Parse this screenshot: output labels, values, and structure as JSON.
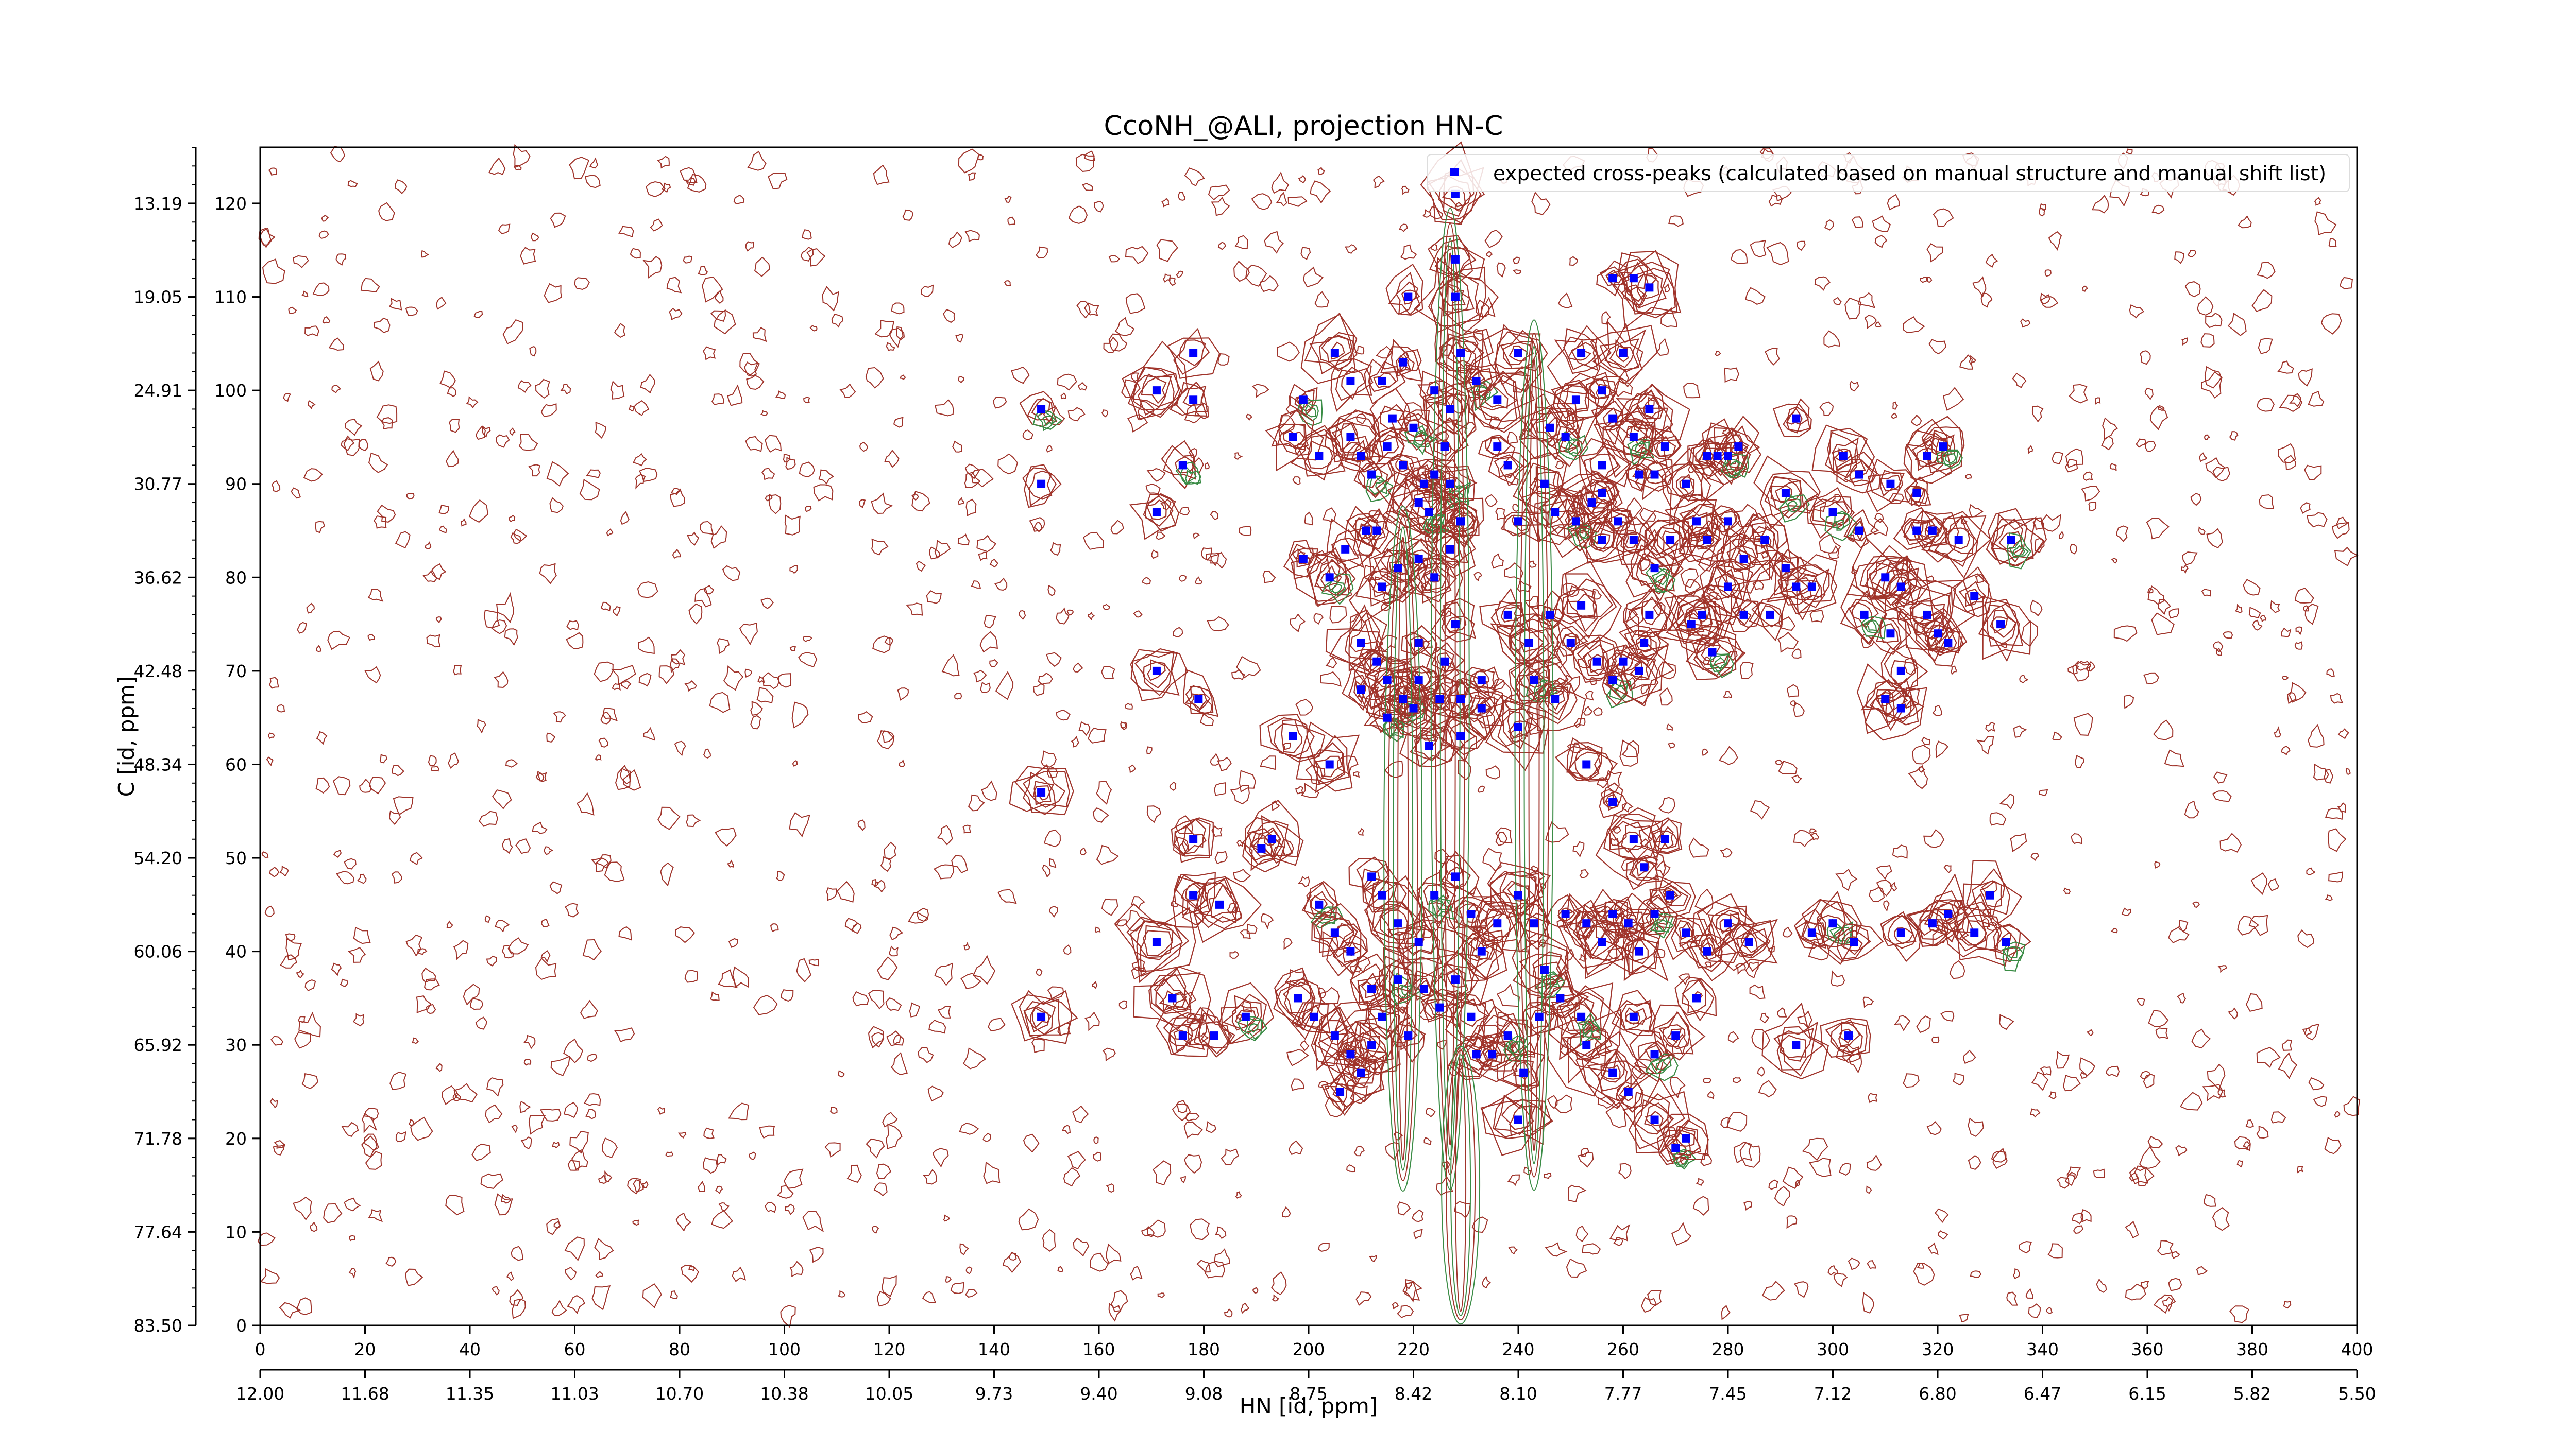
{
  "chart_data": {
    "type": "scatter",
    "title": "CcoNH_@ALI, projection HN-C",
    "xlabel": "HN [id, ppm]",
    "ylabel": "C [id, ppm]",
    "xlim": [
      0,
      400
    ],
    "ylim": [
      0,
      126
    ],
    "x_ticks": [
      0,
      20,
      40,
      60,
      80,
      100,
      120,
      140,
      160,
      180,
      200,
      220,
      240,
      260,
      280,
      300,
      320,
      340,
      360,
      380,
      400
    ],
    "x_ppm_ticks": [
      "12.00",
      "11.68",
      "11.35",
      "11.03",
      "10.70",
      "10.38",
      "10.05",
      "9.73",
      "9.40",
      "9.08",
      "8.75",
      "8.42",
      "8.10",
      "7.77",
      "7.45",
      "7.12",
      "6.80",
      "6.47",
      "6.15",
      "5.82",
      "5.50"
    ],
    "y_ticks": [
      0,
      10,
      20,
      30,
      40,
      50,
      60,
      70,
      80,
      90,
      100,
      110,
      120
    ],
    "y_ppm_ticks": [
      "83.50",
      "77.64",
      "71.78",
      "65.92",
      "60.06",
      "54.20",
      "48.34",
      "42.48",
      "36.62",
      "30.77",
      "24.91",
      "19.05",
      "13.19"
    ],
    "legend": {
      "placement": "top-right",
      "label": "expected cross-peaks (calculated based on manual structure and manual shift list)"
    },
    "colors": {
      "positive_contour": "#a0342b",
      "negative_contour": "#3a8c45",
      "peak_marker": "#0000ff"
    },
    "series": [
      {
        "name": "expected cross-peaks (calculated based on manual structure and manual shift list)",
        "points": [
          [
            149,
            98
          ],
          [
            149,
            90
          ],
          [
            171,
            100
          ],
          [
            171,
            87
          ],
          [
            171,
            70
          ],
          [
            178,
            104
          ],
          [
            178,
            99
          ],
          [
            176,
            92
          ],
          [
            179,
            67
          ],
          [
            178,
            52
          ],
          [
            178,
            46
          ],
          [
            183,
            45
          ],
          [
            191,
            51
          ],
          [
            193,
            52
          ],
          [
            188,
            33
          ],
          [
            171,
            41
          ],
          [
            174,
            35
          ],
          [
            176,
            31
          ],
          [
            182,
            31
          ],
          [
            149,
            33
          ],
          [
            149,
            57
          ],
          [
            199,
            99
          ],
          [
            197,
            95
          ],
          [
            202,
            93
          ],
          [
            205,
            104
          ],
          [
            208,
            101
          ],
          [
            208,
            95
          ],
          [
            210,
            93
          ],
          [
            212,
            91
          ],
          [
            214,
            101
          ],
          [
            215,
            94
          ],
          [
            216,
            97
          ],
          [
            219,
            110
          ],
          [
            218,
            103
          ],
          [
            218,
            92
          ],
          [
            220,
            96
          ],
          [
            221,
            88
          ],
          [
            222,
            90
          ],
          [
            224,
            100
          ],
          [
            224,
            91
          ],
          [
            226,
            94
          ],
          [
            227,
            98
          ],
          [
            227,
            90
          ],
          [
            229,
            86
          ],
          [
            228,
            121
          ],
          [
            228,
            110
          ],
          [
            228,
            114
          ],
          [
            229,
            104
          ],
          [
            199,
            82
          ],
          [
            204,
            80
          ],
          [
            207,
            83
          ],
          [
            211,
            85
          ],
          [
            213,
            85
          ],
          [
            214,
            79
          ],
          [
            217,
            81
          ],
          [
            221,
            82
          ],
          [
            223,
            87
          ],
          [
            224,
            80
          ],
          [
            227,
            83
          ],
          [
            229,
            86
          ],
          [
            210,
            73
          ],
          [
            213,
            71
          ],
          [
            215,
            69
          ],
          [
            218,
            67
          ],
          [
            221,
            73
          ],
          [
            221,
            69
          ],
          [
            226,
            71
          ],
          [
            228,
            75
          ],
          [
            229,
            67
          ],
          [
            233,
            66
          ],
          [
            232,
            101
          ],
          [
            236,
            99
          ],
          [
            236,
            94
          ],
          [
            238,
            92
          ],
          [
            240,
            104
          ],
          [
            245,
            90
          ],
          [
            246,
            96
          ],
          [
            249,
            95
          ],
          [
            251,
            99
          ],
          [
            252,
            104
          ],
          [
            256,
            100
          ],
          [
            256,
            92
          ],
          [
            258,
            97
          ],
          [
            260,
            104
          ],
          [
            262,
            95
          ],
          [
            265,
            98
          ],
          [
            266,
            91
          ],
          [
            268,
            94
          ],
          [
            272,
            90
          ],
          [
            276,
            93
          ],
          [
            278,
            93
          ],
          [
            280,
            93
          ],
          [
            282,
            94
          ],
          [
            258,
            112
          ],
          [
            262,
            112
          ],
          [
            265,
            111
          ],
          [
            240,
            86
          ],
          [
            247,
            87
          ],
          [
            251,
            86
          ],
          [
            254,
            88
          ],
          [
            256,
            89
          ],
          [
            256,
            84
          ],
          [
            259,
            86
          ],
          [
            262,
            84
          ],
          [
            263,
            91
          ],
          [
            266,
            81
          ],
          [
            269,
            84
          ],
          [
            274,
            86
          ],
          [
            276,
            84
          ],
          [
            280,
            86
          ],
          [
            283,
            82
          ],
          [
            287,
            84
          ],
          [
            291,
            89
          ],
          [
            293,
            97
          ],
          [
            302,
            93
          ],
          [
            305,
            91
          ],
          [
            311,
            90
          ],
          [
            316,
            89
          ],
          [
            318,
            93
          ],
          [
            321,
            94
          ],
          [
            238,
            76
          ],
          [
            242,
            73
          ],
          [
            246,
            76
          ],
          [
            250,
            73
          ],
          [
            252,
            77
          ],
          [
            255,
            71
          ],
          [
            258,
            69
          ],
          [
            260,
            71
          ],
          [
            263,
            70
          ],
          [
            264,
            73
          ],
          [
            265,
            76
          ],
          [
            273,
            75
          ],
          [
            275,
            76
          ],
          [
            277,
            72
          ],
          [
            280,
            79
          ],
          [
            283,
            76
          ],
          [
            288,
            76
          ],
          [
            291,
            81
          ],
          [
            293,
            79
          ],
          [
            296,
            79
          ],
          [
            300,
            87
          ],
          [
            305,
            85
          ],
          [
            310,
            80
          ],
          [
            313,
            79
          ],
          [
            316,
            85
          ],
          [
            319,
            85
          ],
          [
            324,
            84
          ],
          [
            334,
            84
          ],
          [
            332,
            75
          ],
          [
            327,
            78
          ],
          [
            311,
            74
          ],
          [
            322,
            73
          ],
          [
            320,
            74
          ],
          [
            313,
            70
          ],
          [
            306,
            76
          ],
          [
            310,
            67
          ],
          [
            318,
            76
          ],
          [
            313,
            66
          ],
          [
            197,
            63
          ],
          [
            204,
            60
          ],
          [
            210,
            68
          ],
          [
            215,
            65
          ],
          [
            220,
            66
          ],
          [
            223,
            62
          ],
          [
            225,
            67
          ],
          [
            229,
            63
          ],
          [
            233,
            69
          ],
          [
            240,
            64
          ],
          [
            243,
            69
          ],
          [
            247,
            67
          ],
          [
            253,
            60
          ],
          [
            258,
            56
          ],
          [
            262,
            52
          ],
          [
            264,
            49
          ],
          [
            268,
            52
          ],
          [
            202,
            45
          ],
          [
            205,
            42
          ],
          [
            208,
            40
          ],
          [
            212,
            48
          ],
          [
            214,
            46
          ],
          [
            217,
            43
          ],
          [
            221,
            41
          ],
          [
            224,
            46
          ],
          [
            228,
            48
          ],
          [
            231,
            44
          ],
          [
            233,
            40
          ],
          [
            236,
            43
          ],
          [
            240,
            46
          ],
          [
            243,
            43
          ],
          [
            245,
            38
          ],
          [
            249,
            44
          ],
          [
            253,
            43
          ],
          [
            256,
            41
          ],
          [
            258,
            44
          ],
          [
            261,
            43
          ],
          [
            263,
            40
          ],
          [
            266,
            44
          ],
          [
            269,
            46
          ],
          [
            272,
            42
          ],
          [
            276,
            40
          ],
          [
            280,
            43
          ],
          [
            284,
            41
          ],
          [
            296,
            42
          ],
          [
            300,
            43
          ],
          [
            304,
            41
          ],
          [
            313,
            42
          ],
          [
            319,
            43
          ],
          [
            322,
            44
          ],
          [
            327,
            42
          ],
          [
            330,
            46
          ],
          [
            333,
            41
          ],
          [
            198,
            35
          ],
          [
            201,
            33
          ],
          [
            205,
            31
          ],
          [
            208,
            29
          ],
          [
            212,
            36
          ],
          [
            214,
            33
          ],
          [
            217,
            37
          ],
          [
            219,
            31
          ],
          [
            222,
            36
          ],
          [
            225,
            34
          ],
          [
            228,
            37
          ],
          [
            231,
            33
          ],
          [
            235,
            29
          ],
          [
            238,
            31
          ],
          [
            241,
            27
          ],
          [
            244,
            33
          ],
          [
            248,
            35
          ],
          [
            253,
            30
          ],
          [
            258,
            27
          ],
          [
            262,
            33
          ],
          [
            266,
            29
          ],
          [
            270,
            31
          ],
          [
            274,
            35
          ],
          [
            293,
            30
          ],
          [
            303,
            31
          ],
          [
            261,
            25
          ],
          [
            266,
            22
          ],
          [
            270,
            19
          ],
          [
            272,
            20
          ],
          [
            240,
            22
          ],
          [
            232,
            29
          ],
          [
            210,
            27
          ],
          [
            206,
            25
          ],
          [
            212,
            30
          ],
          [
            252,
            33
          ]
        ]
      }
    ]
  }
}
